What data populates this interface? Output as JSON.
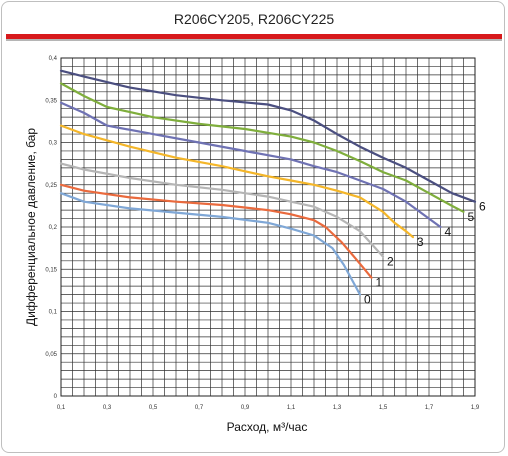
{
  "header": {
    "title": "R206CY205, R206CY225"
  },
  "chart_data": {
    "type": "line",
    "title": "R206CY205, R206CY225",
    "xlabel": "Расход, м³/час",
    "ylabel": "Дифференциальное давление, бар",
    "xlim": [
      0.1,
      1.9
    ],
    "ylim": [
      0,
      0.4
    ],
    "x_ticks": [
      "0,1",
      "0,3",
      "0,5",
      "0,7",
      "0,9",
      "1,1",
      "1,3",
      "1,5",
      "1,7",
      "1,9"
    ],
    "y_ticks": [
      "0",
      "0,05",
      "0,1",
      "0,15",
      "0,2",
      "0,25",
      "0,3",
      "0,35",
      "0,4"
    ],
    "grid": true,
    "series": [
      {
        "name": "0",
        "color": "#7fa7d6",
        "x": [
          0.1,
          0.2,
          0.4,
          0.6,
          0.8,
          1.0,
          1.1,
          1.2,
          1.28,
          1.33,
          1.37,
          1.4
        ],
        "y": [
          0.24,
          0.23,
          0.222,
          0.217,
          0.212,
          0.205,
          0.198,
          0.19,
          0.175,
          0.155,
          0.135,
          0.12
        ]
      },
      {
        "name": "1",
        "color": "#ea6a3d",
        "x": [
          0.1,
          0.2,
          0.4,
          0.6,
          0.8,
          1.0,
          1.1,
          1.2,
          1.25,
          1.32,
          1.38,
          1.42,
          1.45
        ],
        "y": [
          0.25,
          0.243,
          0.235,
          0.23,
          0.226,
          0.22,
          0.215,
          0.208,
          0.2,
          0.182,
          0.163,
          0.15,
          0.14
        ]
      },
      {
        "name": "2",
        "color": "#b5b5b5",
        "x": [
          0.1,
          0.2,
          0.4,
          0.6,
          0.8,
          1.0,
          1.1,
          1.2,
          1.3,
          1.4,
          1.45,
          1.5
        ],
        "y": [
          0.275,
          0.268,
          0.258,
          0.25,
          0.244,
          0.236,
          0.23,
          0.224,
          0.212,
          0.195,
          0.18,
          0.165
        ]
      },
      {
        "name": "3",
        "color": "#f4b629",
        "x": [
          0.1,
          0.2,
          0.4,
          0.6,
          0.8,
          1.0,
          1.1,
          1.2,
          1.3,
          1.4,
          1.5,
          1.55,
          1.6,
          1.63
        ],
        "y": [
          0.32,
          0.31,
          0.295,
          0.282,
          0.272,
          0.26,
          0.255,
          0.25,
          0.243,
          0.235,
          0.218,
          0.205,
          0.195,
          0.188
        ]
      },
      {
        "name": "4",
        "color": "#6f72b3",
        "x": [
          0.1,
          0.2,
          0.3,
          0.5,
          0.7,
          0.9,
          1.1,
          1.2,
          1.3,
          1.4,
          1.5,
          1.6,
          1.7,
          1.75
        ],
        "y": [
          0.347,
          0.335,
          0.32,
          0.31,
          0.3,
          0.29,
          0.28,
          0.272,
          0.265,
          0.255,
          0.245,
          0.23,
          0.21,
          0.2
        ]
      },
      {
        "name": "5",
        "color": "#7fae3c",
        "x": [
          0.1,
          0.2,
          0.3,
          0.5,
          0.7,
          0.9,
          1.1,
          1.2,
          1.3,
          1.4,
          1.5,
          1.6,
          1.7,
          1.8,
          1.85
        ],
        "y": [
          0.37,
          0.355,
          0.342,
          0.33,
          0.322,
          0.316,
          0.307,
          0.3,
          0.29,
          0.278,
          0.265,
          0.255,
          0.24,
          0.225,
          0.218
        ]
      },
      {
        "name": "6",
        "color": "#4b4f80",
        "x": [
          0.1,
          0.2,
          0.4,
          0.6,
          0.8,
          1.0,
          1.1,
          1.2,
          1.3,
          1.4,
          1.5,
          1.6,
          1.7,
          1.8,
          1.9
        ],
        "y": [
          0.385,
          0.378,
          0.365,
          0.356,
          0.35,
          0.345,
          0.338,
          0.326,
          0.31,
          0.295,
          0.282,
          0.27,
          0.255,
          0.24,
          0.23
        ]
      }
    ]
  }
}
